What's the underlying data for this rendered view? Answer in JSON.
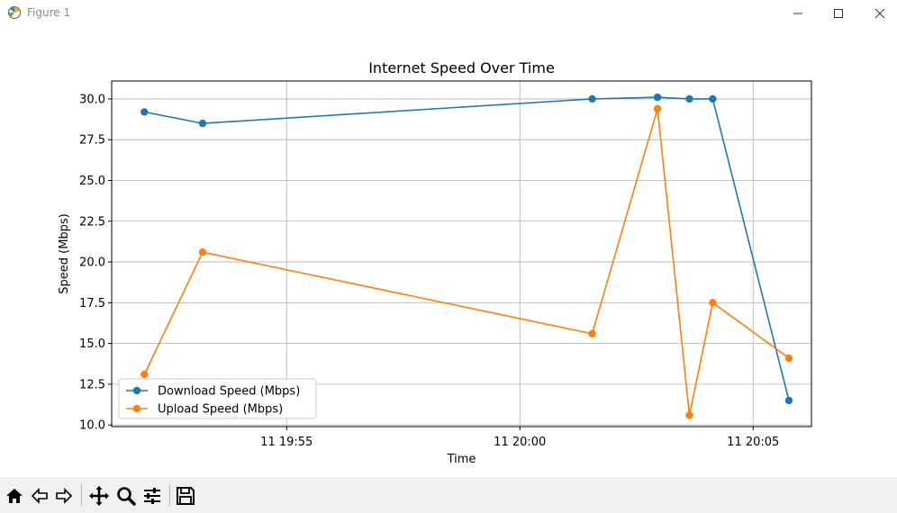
{
  "window": {
    "title": "Figure 1"
  },
  "toolbar": {
    "icons": [
      "home-icon",
      "back-arrow-icon",
      "forward-arrow-icon",
      "pan-icon",
      "zoom-icon",
      "configure-subplots-icon",
      "save-icon"
    ]
  },
  "colors": {
    "download": "#1f77b4",
    "upload": "#ff7f0e",
    "grid": "#b0b0b0",
    "toolbar_bg": "#f0f0f0"
  },
  "chart_data": {
    "type": "line",
    "title": "Internet Speed Over Time",
    "xlabel": "Time",
    "ylabel": "Speed (Mbps)",
    "x_ticks": [
      "11 19:55",
      "11 20:00",
      "11 20:05"
    ],
    "xlim": [
      "2024-01-11 19:51:15",
      "2024-01-11 20:06:15"
    ],
    "ylim": [
      9.9,
      31.1
    ],
    "y_ticks": [
      10.0,
      12.5,
      15.0,
      17.5,
      20.0,
      22.5,
      25.0,
      27.5,
      30.0
    ],
    "grid": true,
    "legend_position": "lower-left",
    "x": [
      "2024-01-11 19:51:57",
      "2024-01-11 19:53:12",
      "2024-01-11 20:01:33",
      "2024-01-11 20:02:57",
      "2024-01-11 20:03:38",
      "2024-01-11 20:04:08",
      "2024-01-11 20:05:46"
    ],
    "series": [
      {
        "name": "Download Speed (Mbps)",
        "values": [
          29.2,
          28.5,
          30.0,
          30.1,
          30.0,
          30.0,
          11.5
        ]
      },
      {
        "name": "Upload Speed (Mbps)",
        "values": [
          13.1,
          20.6,
          15.6,
          29.4,
          10.6,
          17.5,
          14.1
        ]
      }
    ]
  }
}
